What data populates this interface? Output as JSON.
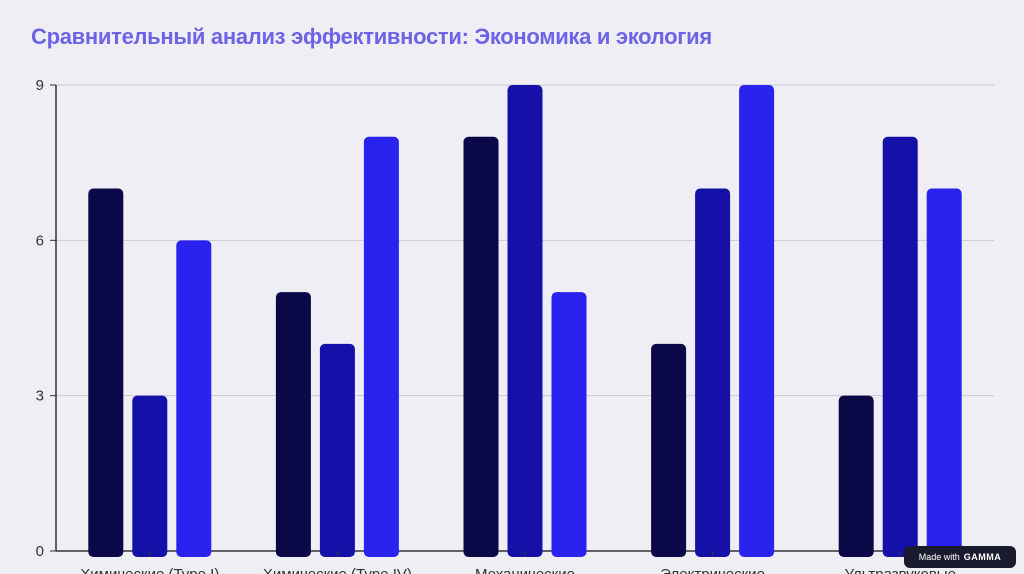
{
  "title": "Сравнительный анализ эффективности: Экономика и экология",
  "badge": {
    "prefix": "Made with",
    "brand": "GAMMA"
  },
  "chart_data": {
    "type": "bar",
    "title": "Сравнительный анализ эффективности: Экономика и экология",
    "categories": [
      "Химические (Type I)",
      "Химические (Type IV)",
      "Механические",
      "Электрические",
      "Ультразвуковые"
    ],
    "series": [
      {
        "values": [
          7,
          5,
          8,
          4,
          3
        ],
        "color": "#0b0847"
      },
      {
        "values": [
          3,
          4,
          9,
          7,
          8
        ],
        "color": "#1510a8"
      },
      {
        "values": [
          6,
          8,
          5,
          9,
          7
        ],
        "color": "#2a22ee"
      }
    ],
    "ylim": [
      0,
      9
    ],
    "yticks": [
      0,
      3,
      6,
      9
    ],
    "grid": true,
    "legend": "none"
  }
}
